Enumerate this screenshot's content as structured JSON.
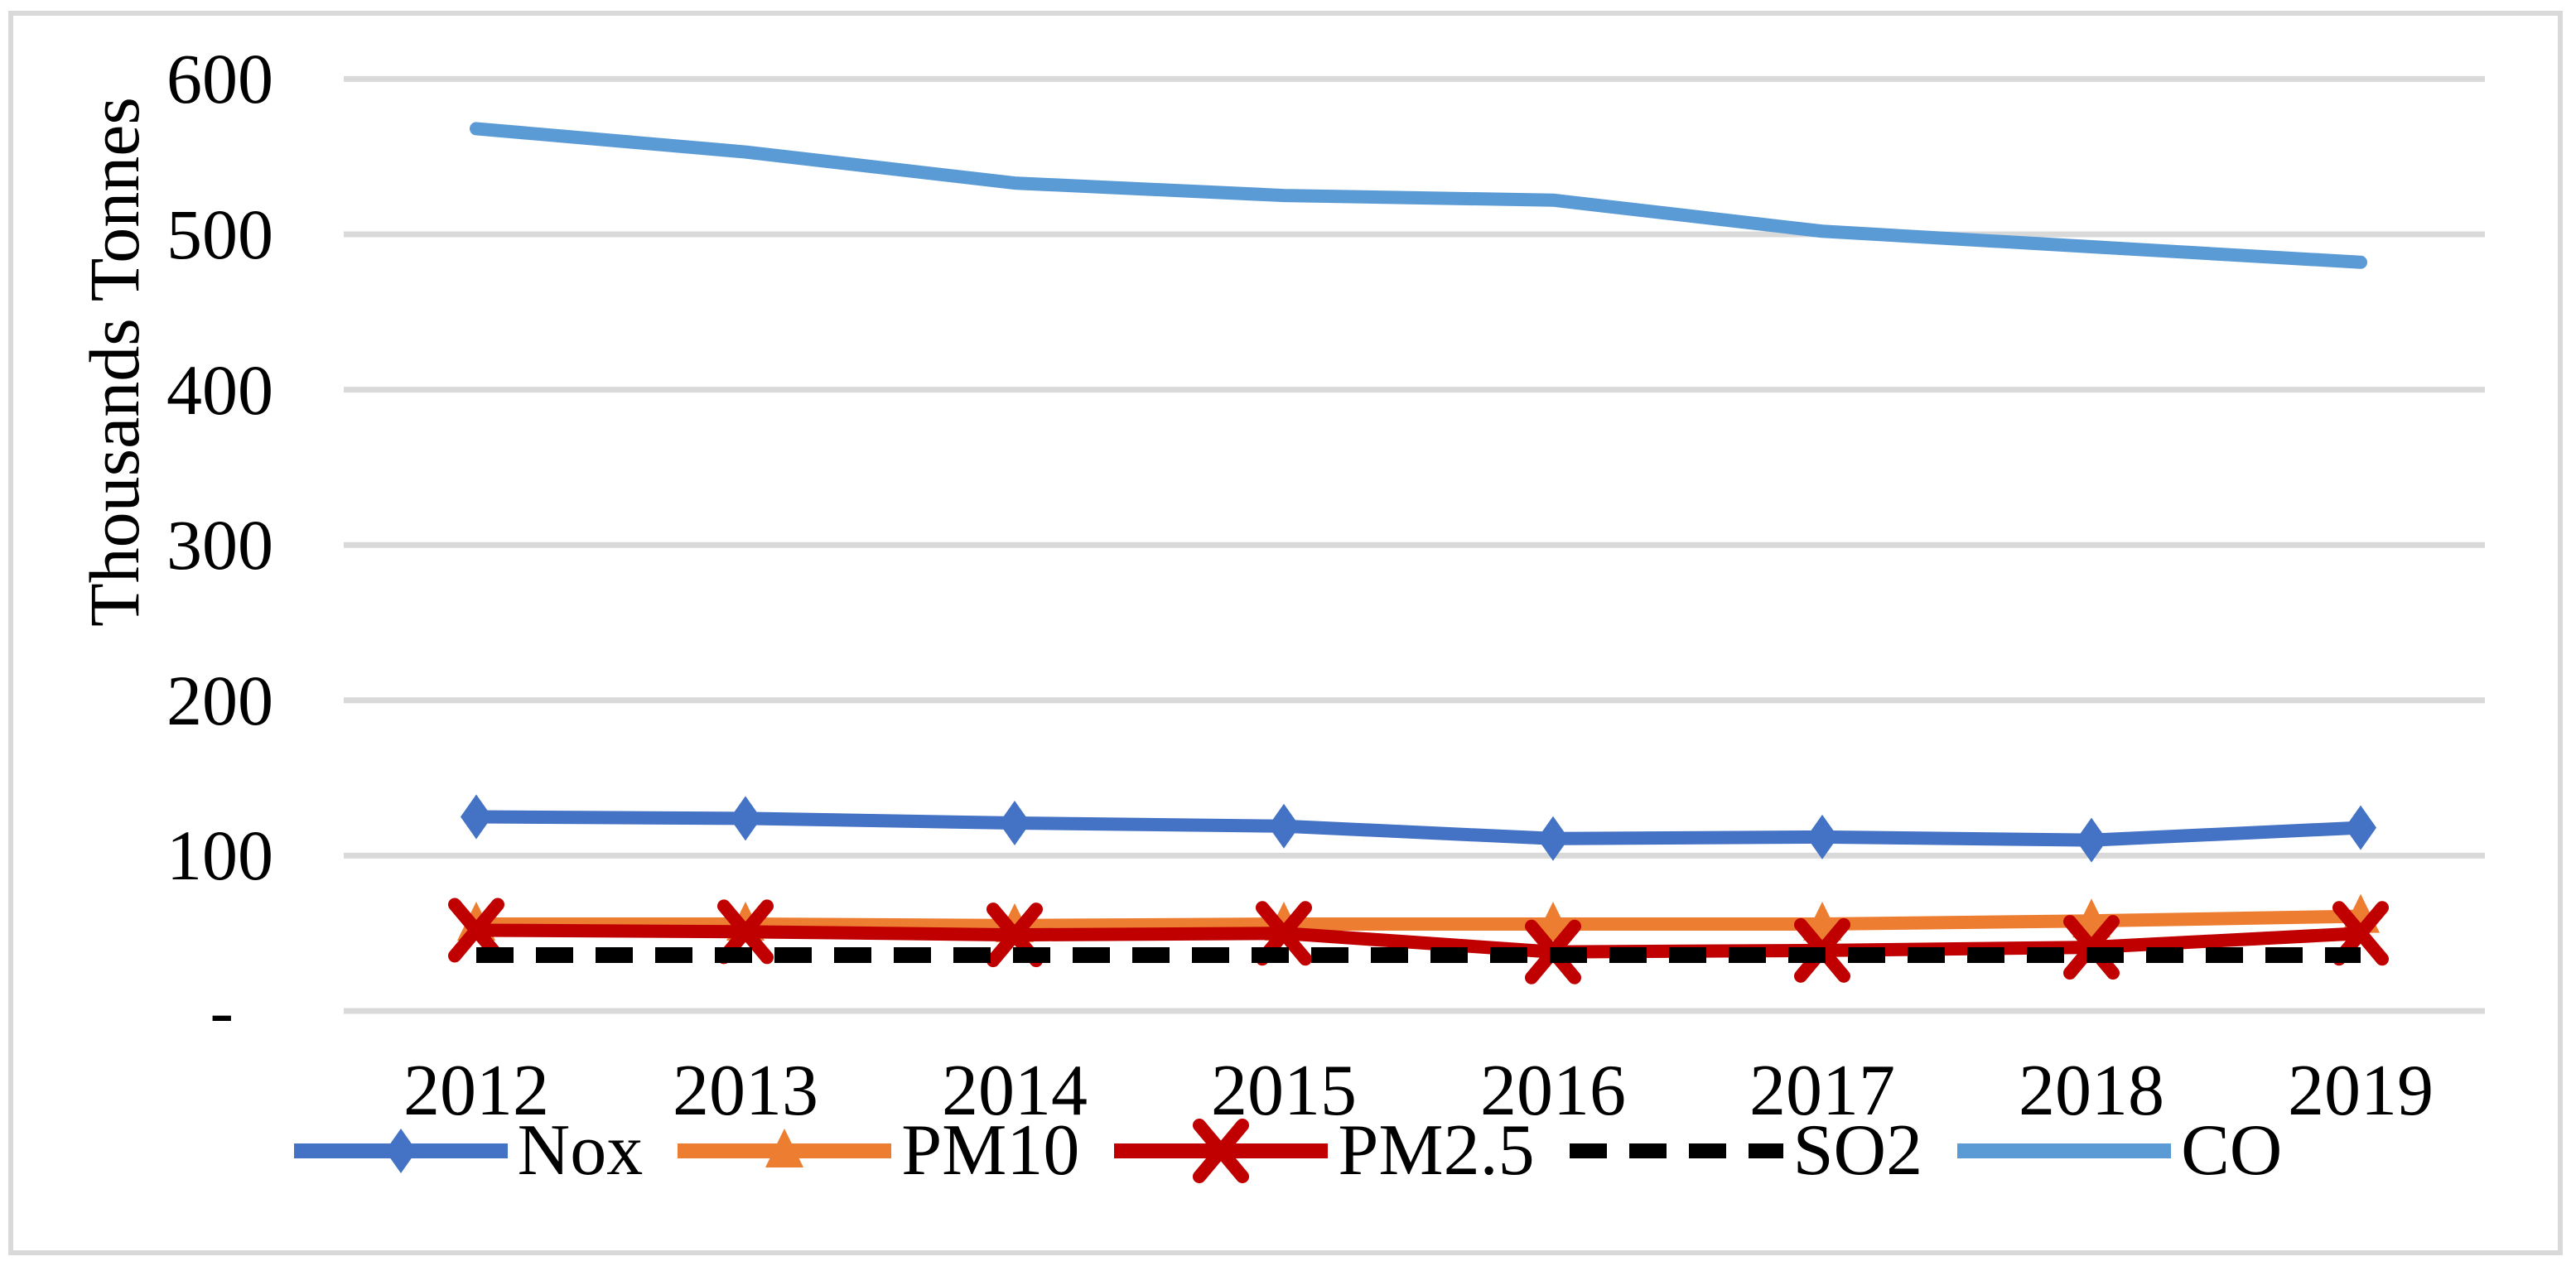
{
  "chart": {
    "background": "#ffffff",
    "frame_color": "#d9d9d9",
    "grid_color": "#d9d9d9",
    "text_color": "#000000",
    "y_axis_title": "Thousands Tonnes"
  },
  "chart_data": {
    "type": "line",
    "title": "",
    "xlabel": "",
    "ylabel": "Thousands Tonnes",
    "categories": [
      "2012",
      "2013",
      "2014",
      "2015",
      "2016",
      "2017",
      "2018",
      "2019"
    ],
    "series": [
      {
        "name": "Nox",
        "color": "#4472C4",
        "marker": "diamond",
        "line": "solid",
        "values": [
          125,
          124,
          121,
          119,
          111,
          112,
          110,
          118
        ]
      },
      {
        "name": "PM10",
        "color": "#ED7D31",
        "marker": "triangle",
        "line": "solid",
        "values": [
          56,
          56,
          55,
          56,
          56,
          56,
          58,
          61
        ]
      },
      {
        "name": "PM2.5",
        "color": "#C00000",
        "marker": "x",
        "line": "solid",
        "values": [
          52,
          51,
          49,
          50,
          38,
          39,
          41,
          50
        ]
      },
      {
        "name": "SO2",
        "color": "#000000",
        "marker": "none",
        "line": "dashed",
        "values": [
          36,
          36,
          36,
          36,
          36,
          36,
          36,
          36
        ]
      },
      {
        "name": "CO",
        "color": "#5B9BD5",
        "marker": "none",
        "line": "solid",
        "values": [
          568,
          553,
          533,
          525,
          522,
          502,
          492,
          482
        ]
      }
    ],
    "ylim": [
      0,
      600
    ],
    "ytick_step": 100,
    "ytick_labels": [
      "-",
      "100",
      "200",
      "300",
      "400",
      "500",
      "600"
    ],
    "grid": true,
    "legend_position": "bottom"
  }
}
